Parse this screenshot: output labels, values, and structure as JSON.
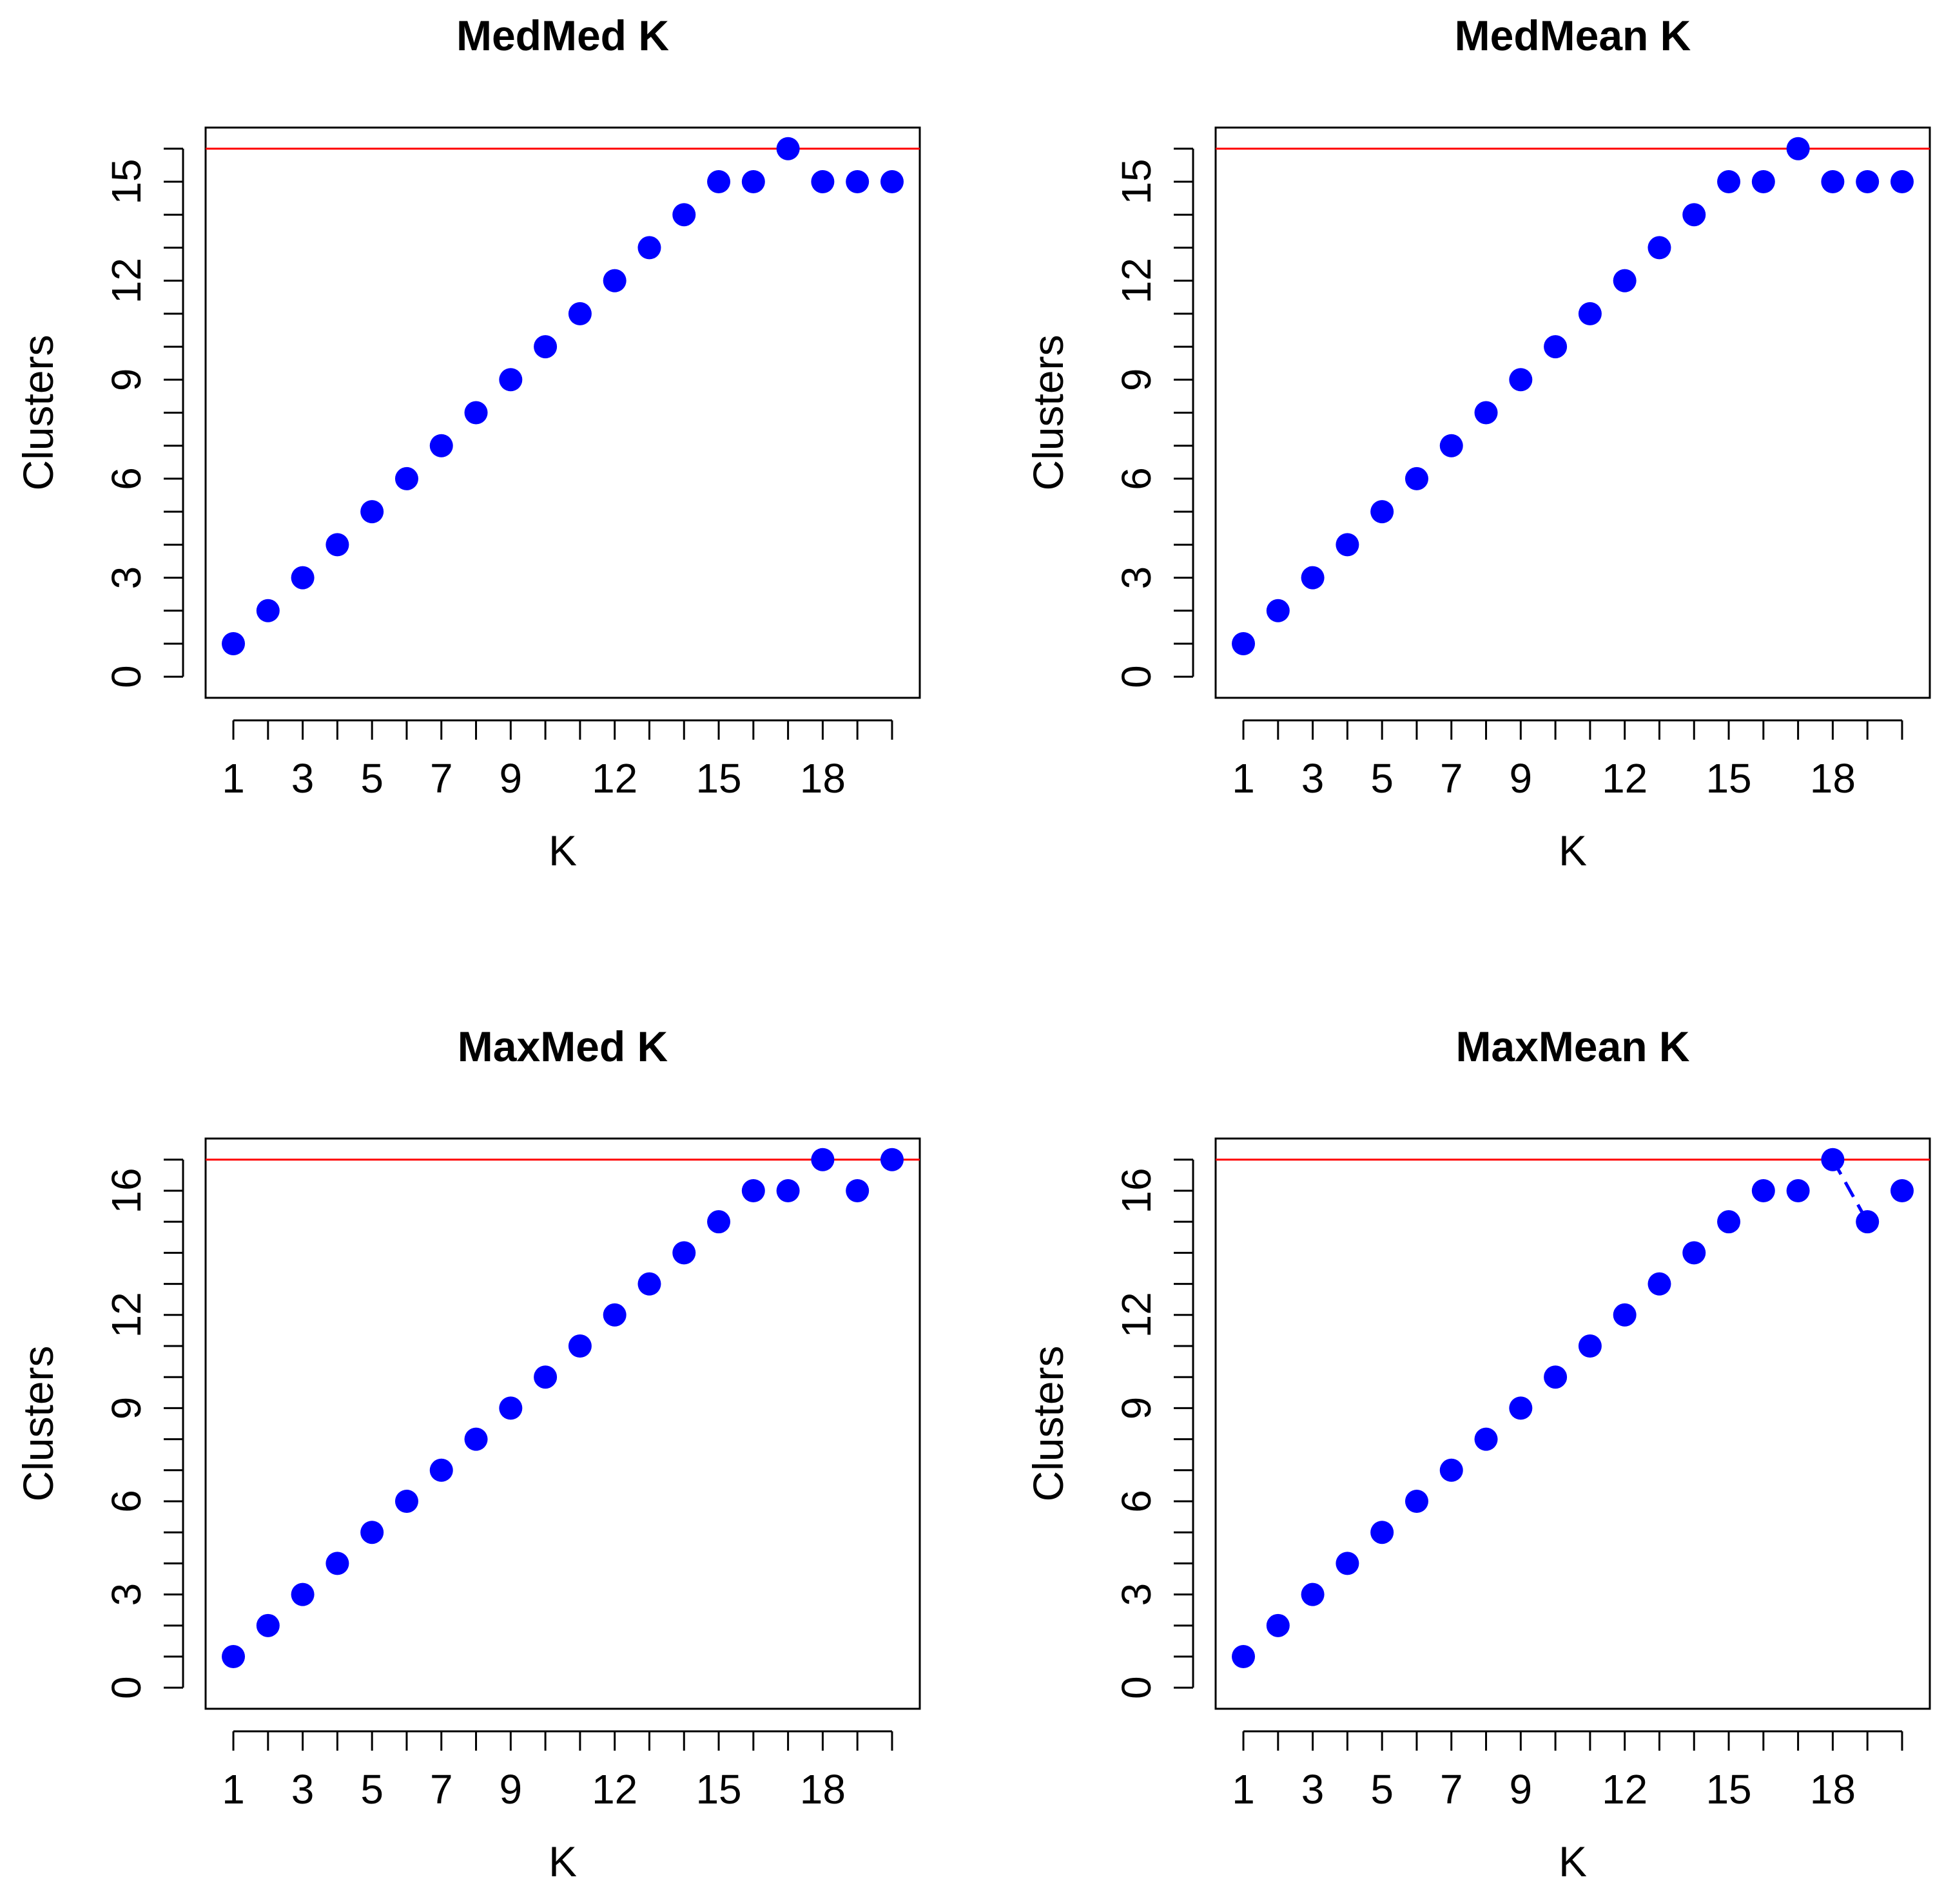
{
  "colors": {
    "point": "#0000ff",
    "reference_line": "#ff0000",
    "axis": "#000000",
    "background": "#ffffff"
  },
  "chart_data": [
    {
      "type": "scatter",
      "title": "MedMed K",
      "xlabel": "K",
      "ylabel": "Clusters",
      "x": [
        1,
        2,
        3,
        4,
        5,
        6,
        7,
        8,
        9,
        10,
        11,
        12,
        13,
        14,
        15,
        16,
        17,
        18,
        19,
        20
      ],
      "values": [
        1,
        2,
        3,
        4,
        5,
        6,
        7,
        8,
        9,
        10,
        11,
        12,
        13,
        14,
        15,
        15,
        16,
        15,
        15,
        15
      ],
      "xlim": [
        0.2,
        20.8
      ],
      "ylim": [
        -0.64,
        16.64
      ],
      "x_ticks_minor": [
        1,
        2,
        3,
        4,
        5,
        6,
        7,
        8,
        9,
        10,
        11,
        12,
        13,
        14,
        15,
        16,
        17,
        18,
        19,
        20
      ],
      "x_tick_labels": [
        1,
        3,
        5,
        7,
        9,
        12,
        15,
        18
      ],
      "y_ticks_minor": [
        0,
        1,
        2,
        3,
        4,
        5,
        6,
        7,
        8,
        9,
        10,
        11,
        12,
        13,
        14,
        15,
        16
      ],
      "y_tick_labels": [
        0,
        3,
        6,
        9,
        12,
        15
      ],
      "reference_line_y": 16,
      "connector": null
    },
    {
      "type": "scatter",
      "title": "MedMean K",
      "xlabel": "K",
      "ylabel": "Clusters",
      "x": [
        1,
        2,
        3,
        4,
        5,
        6,
        7,
        8,
        9,
        10,
        11,
        12,
        13,
        14,
        15,
        16,
        17,
        18,
        19,
        20
      ],
      "values": [
        1,
        2,
        3,
        4,
        5,
        6,
        7,
        8,
        9,
        10,
        11,
        12,
        13,
        14,
        15,
        15,
        16,
        15,
        15,
        15
      ],
      "xlim": [
        0.2,
        20.8
      ],
      "ylim": [
        -0.64,
        16.64
      ],
      "x_ticks_minor": [
        1,
        2,
        3,
        4,
        5,
        6,
        7,
        8,
        9,
        10,
        11,
        12,
        13,
        14,
        15,
        16,
        17,
        18,
        19,
        20
      ],
      "x_tick_labels": [
        1,
        3,
        5,
        7,
        9,
        12,
        15,
        18
      ],
      "y_ticks_minor": [
        0,
        1,
        2,
        3,
        4,
        5,
        6,
        7,
        8,
        9,
        10,
        11,
        12,
        13,
        14,
        15,
        16
      ],
      "y_tick_labels": [
        0,
        3,
        6,
        9,
        12,
        15
      ],
      "reference_line_y": 16,
      "connector": null
    },
    {
      "type": "scatter",
      "title": "MaxMed K",
      "xlabel": "K",
      "ylabel": "Clusters",
      "x": [
        1,
        2,
        3,
        4,
        5,
        6,
        7,
        8,
        9,
        10,
        11,
        12,
        13,
        14,
        15,
        16,
        17,
        18,
        19,
        20
      ],
      "values": [
        1,
        2,
        3,
        4,
        5,
        6,
        7,
        8,
        9,
        10,
        11,
        12,
        13,
        14,
        15,
        16,
        16,
        17,
        16,
        17
      ],
      "xlim": [
        0.2,
        20.8
      ],
      "ylim": [
        -0.68,
        17.68
      ],
      "x_ticks_minor": [
        1,
        2,
        3,
        4,
        5,
        6,
        7,
        8,
        9,
        10,
        11,
        12,
        13,
        14,
        15,
        16,
        17,
        18,
        19,
        20
      ],
      "x_tick_labels": [
        1,
        3,
        5,
        7,
        9,
        12,
        15,
        18
      ],
      "y_ticks_minor": [
        0,
        1,
        2,
        3,
        4,
        5,
        6,
        7,
        8,
        9,
        10,
        11,
        12,
        13,
        14,
        15,
        16,
        17
      ],
      "y_tick_labels": [
        0,
        3,
        6,
        9,
        12,
        16
      ],
      "reference_line_y": 17,
      "connector": null
    },
    {
      "type": "scatter",
      "title": "MaxMean K",
      "xlabel": "K",
      "ylabel": "Clusters",
      "x": [
        1,
        2,
        3,
        4,
        5,
        6,
        7,
        8,
        9,
        10,
        11,
        12,
        13,
        14,
        15,
        16,
        17,
        18,
        19,
        20
      ],
      "values": [
        1,
        2,
        3,
        4,
        5,
        6,
        7,
        8,
        9,
        10,
        11,
        12,
        13,
        14,
        15,
        16,
        16,
        17,
        15,
        16
      ],
      "xlim": [
        0.2,
        20.8
      ],
      "ylim": [
        -0.68,
        17.68
      ],
      "x_ticks_minor": [
        1,
        2,
        3,
        4,
        5,
        6,
        7,
        8,
        9,
        10,
        11,
        12,
        13,
        14,
        15,
        16,
        17,
        18,
        19,
        20
      ],
      "x_tick_labels": [
        1,
        3,
        5,
        7,
        9,
        12,
        15,
        18
      ],
      "y_ticks_minor": [
        0,
        1,
        2,
        3,
        4,
        5,
        6,
        7,
        8,
        9,
        10,
        11,
        12,
        13,
        14,
        15,
        16,
        17
      ],
      "y_tick_labels": [
        0,
        3,
        6,
        9,
        12,
        16
      ],
      "reference_line_y": 17,
      "connector": {
        "from_index": 17,
        "to_index": 18,
        "style": "dashed"
      }
    }
  ]
}
